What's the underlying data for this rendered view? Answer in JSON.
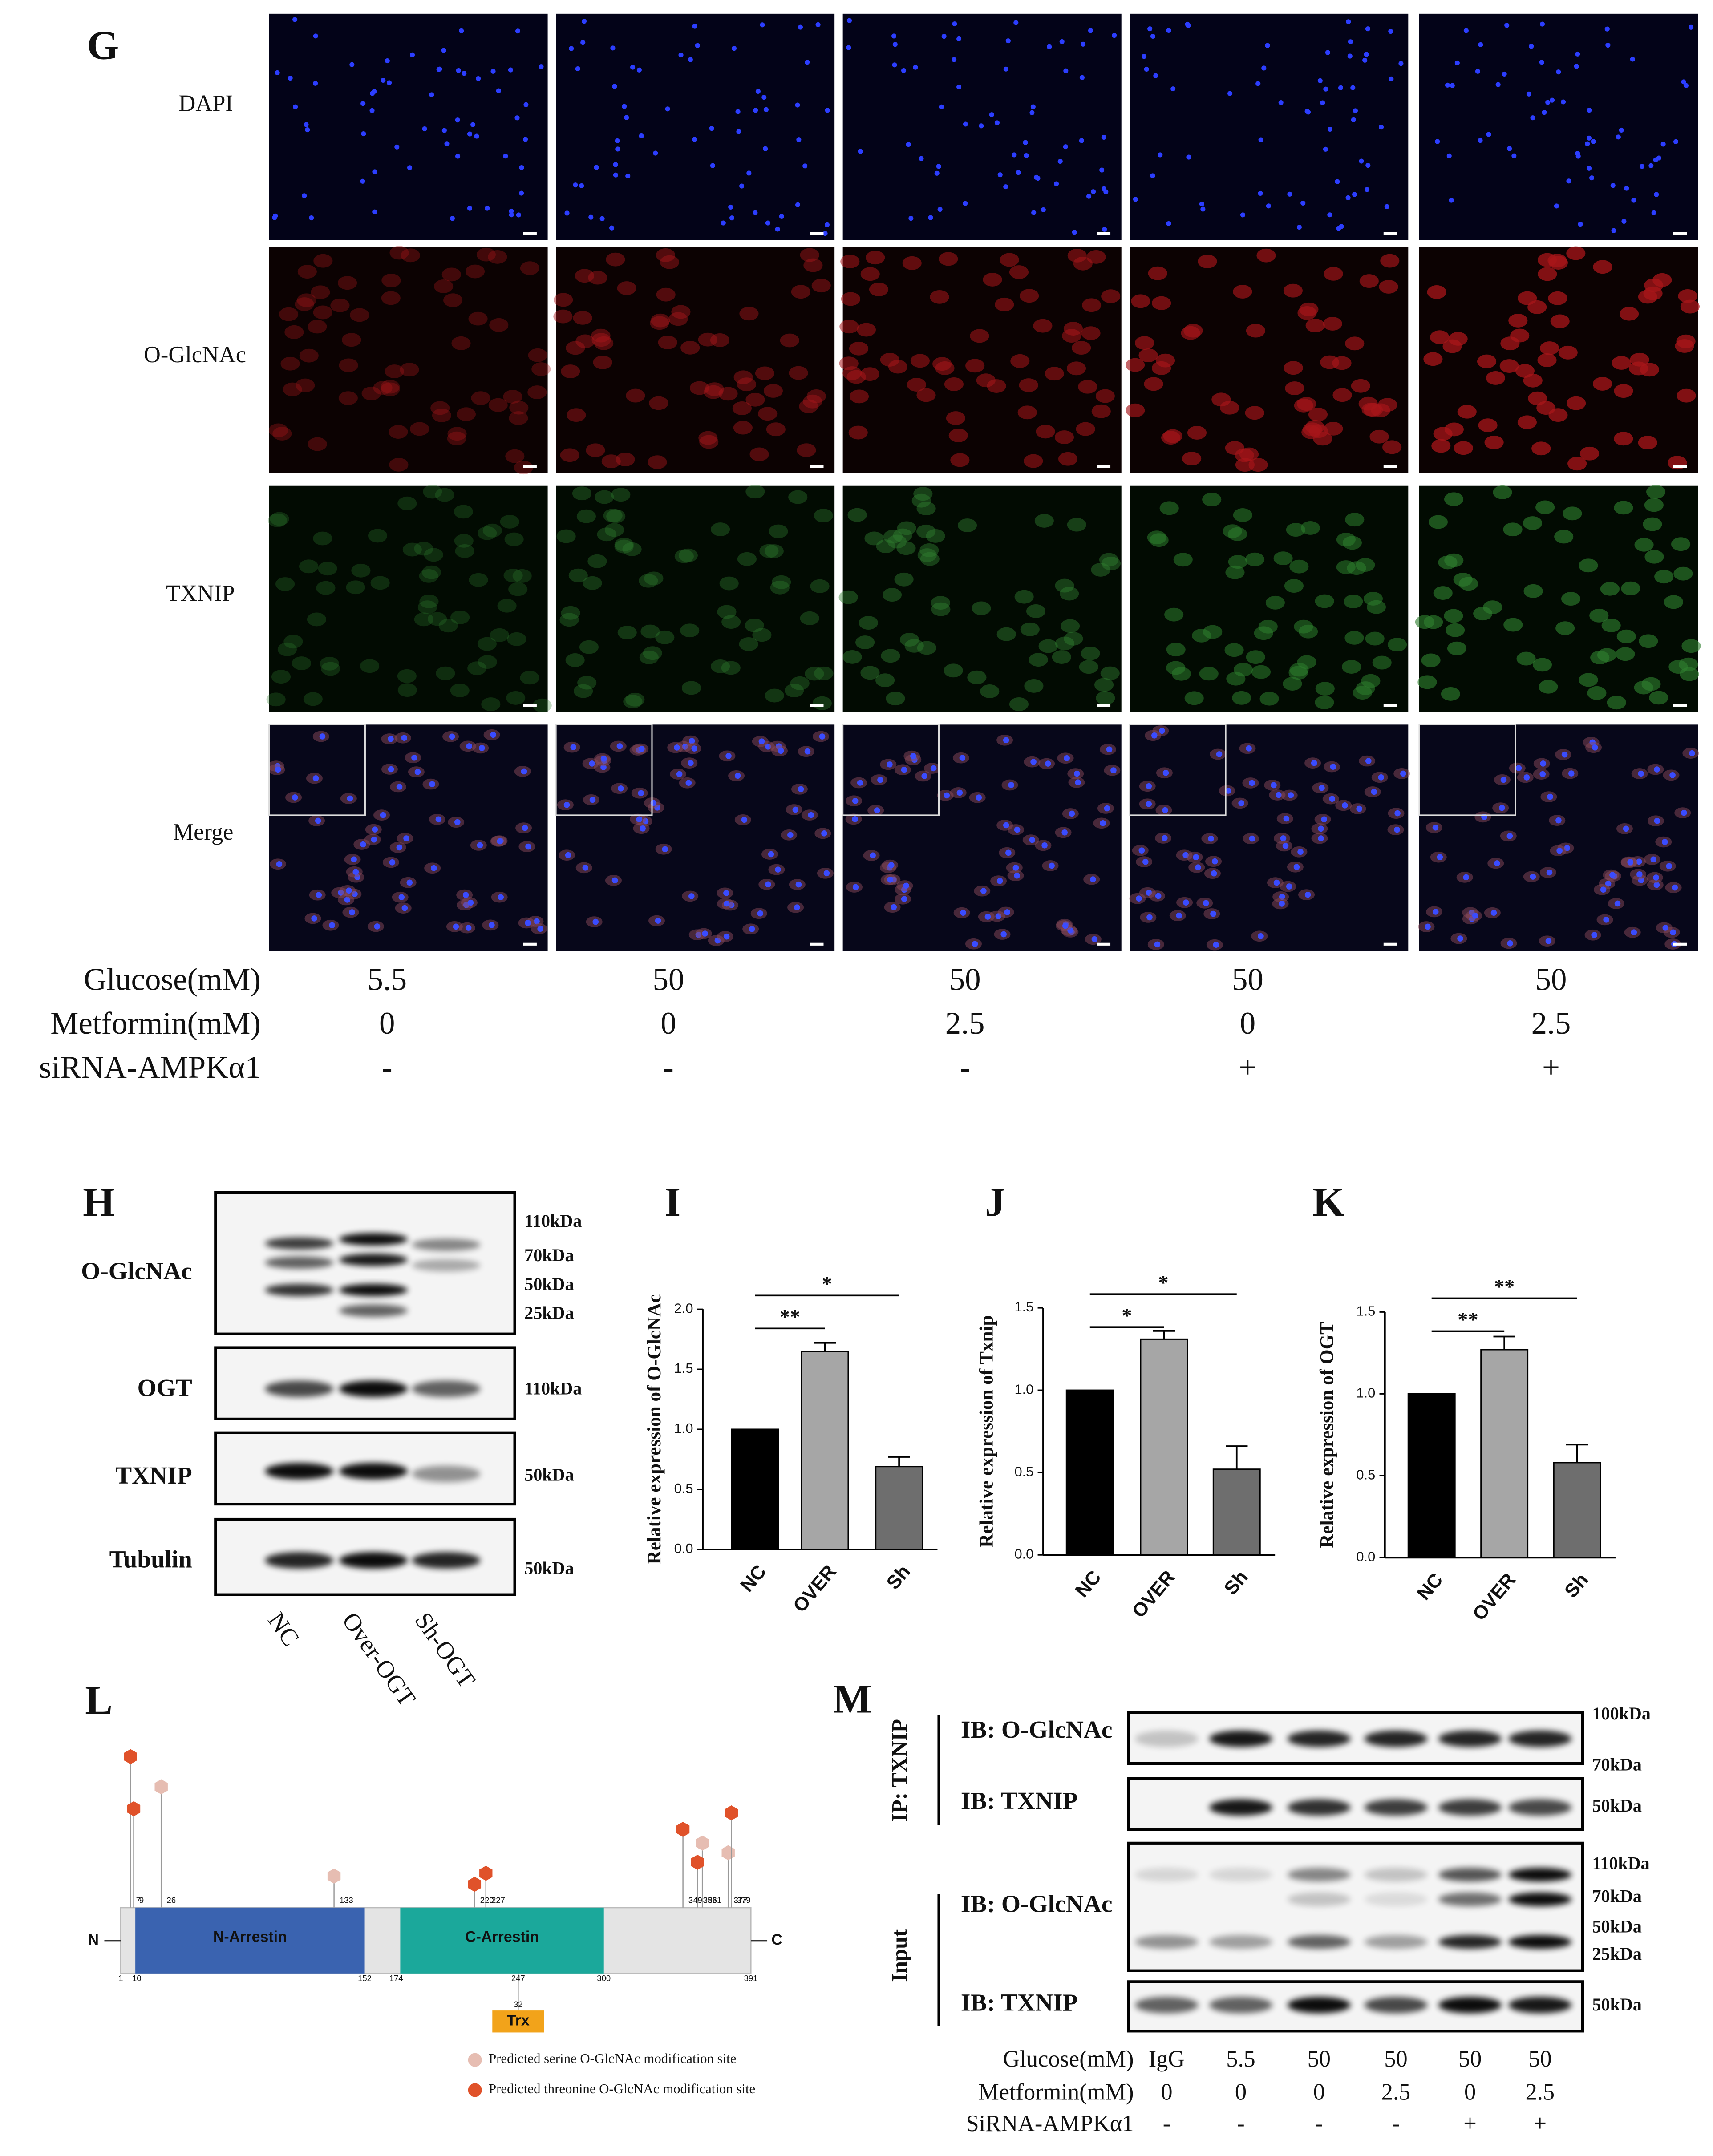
{
  "figure_g": {
    "label": "G",
    "channels": [
      "DAPI",
      "O-GlcNAc",
      "TXNIP",
      "Merge"
    ],
    "conditions": [
      {
        "name": "Glucose(mM)",
        "values": [
          "5.5",
          "50",
          "50",
          "50",
          "50"
        ]
      },
      {
        "name": "Metformin(mM)",
        "values": [
          "0",
          "0",
          "2.5",
          "0",
          "2.5"
        ]
      },
      {
        "name": "siRNA-AMPKα1",
        "values": [
          "-",
          "-",
          "-",
          "+",
          "+"
        ]
      }
    ]
  },
  "blot_h": {
    "label": "H",
    "rows": [
      {
        "name": "O-GlcNAc",
        "markers": [
          "110kDa",
          "70kDa",
          "50kDa",
          "25kDa"
        ]
      },
      {
        "name": "OGT",
        "markers": [
          "110kDa"
        ]
      },
      {
        "name": "TXNIP",
        "markers": [
          "50kDa"
        ]
      },
      {
        "name": "Tubulin",
        "markers": [
          "50kDa"
        ]
      }
    ],
    "lanes": [
      "NC",
      "Over-OGT",
      "Sh-OGT"
    ]
  },
  "chart_data": [
    {
      "type": "bar",
      "panel": "I",
      "ylabel": "Relative expression of O-GlcNAc",
      "categories": [
        "NC",
        "OVER",
        "Sh"
      ],
      "values": [
        1.0,
        1.65,
        0.69
      ],
      "errors": [
        0,
        0.07,
        0.08
      ],
      "colors": [
        "#000000",
        "#a6a6a6",
        "#6e6e6e"
      ],
      "ylim": [
        0,
        2.0
      ],
      "yticks": [
        {
          "value": 0,
          "label": "0.0"
        },
        0.5,
        {
          "value": 1,
          "label": "1.0"
        },
        1.5,
        {
          "value": 2,
          "label": "2.0"
        }
      ],
      "significance": [
        {
          "from": 0,
          "to": 1,
          "label": "**"
        },
        {
          "from": 0,
          "to": 2,
          "label": "*"
        }
      ]
    },
    {
      "type": "bar",
      "panel": "J",
      "ylabel": "Relative expression of Txnip",
      "categories": [
        "NC",
        "OVER",
        "Sh"
      ],
      "values": [
        1.0,
        1.31,
        0.52
      ],
      "errors": [
        0,
        0.05,
        0.14
      ],
      "colors": [
        "#000000",
        "#a6a6a6",
        "#6e6e6e"
      ],
      "ylim": [
        0,
        1.5
      ],
      "yticks": [
        {
          "value": 0,
          "label": "0.0"
        },
        0.5,
        {
          "value": 1,
          "label": "1.0"
        },
        1.5
      ],
      "significance": [
        {
          "from": 0,
          "to": 1,
          "label": "*"
        },
        {
          "from": 0,
          "to": 2,
          "label": "*"
        }
      ]
    },
    {
      "type": "bar",
      "panel": "K",
      "ylabel": "Relative expression of OGT",
      "categories": [
        "NC",
        "OVER",
        "Sh"
      ],
      "values": [
        1.0,
        1.27,
        0.58
      ],
      "errors": [
        0,
        0.08,
        0.11
      ],
      "colors": [
        "#000000",
        "#a6a6a6",
        "#6e6e6e"
      ],
      "ylim": [
        0,
        1.5
      ],
      "yticks": [
        {
          "value": 0,
          "label": "0.0"
        },
        0.5,
        {
          "value": 1,
          "label": "1.0"
        },
        1.5
      ],
      "significance": [
        {
          "from": 0,
          "to": 1,
          "label": "**"
        },
        {
          "from": 0,
          "to": 2,
          "label": "**"
        }
      ]
    }
  ],
  "protein_l": {
    "label": "L",
    "n_terminus": "N",
    "c_terminus": "C",
    "start": 1,
    "end": 391,
    "domains": [
      {
        "name": "N-Arrestin",
        "start": 10,
        "end": 152,
        "color": "#3a63b0"
      },
      {
        "name": "C-Arrestin",
        "start": 174,
        "end": 300,
        "color": "#1ba89b"
      }
    ],
    "trx": {
      "name": "Trx",
      "position": 247,
      "length": 32,
      "color": "#f2a31a"
    },
    "site_types": [
      {
        "label": "Predicted serine O-GlcNAc modification site",
        "color": "#e6bdb2",
        "positions": [
          26,
          133,
          361,
          377
        ]
      },
      {
        "label": "Predicted threonine O-GlcNAc modification site",
        "color": "#e0522a",
        "positions": [
          7,
          9,
          220,
          227,
          349,
          358,
          379
        ]
      }
    ]
  },
  "blot_m": {
    "label": "M",
    "groups": [
      "IP: TXNIP",
      "Input"
    ],
    "rows": [
      {
        "name": "IB: O-GlcNAc",
        "markers": [
          "100kDa",
          "70kDa"
        ]
      },
      {
        "name": "IB: TXNIP",
        "markers": [
          "50kDa"
        ]
      },
      {
        "name": "IB: O-GlcNAc",
        "markers": [
          "110kDa",
          "70kDa",
          "50kDa",
          "25kDa"
        ]
      },
      {
        "name": "IB: TXNIP",
        "markers": [
          "50kDa"
        ]
      }
    ],
    "conditions": [
      {
        "name": "Glucose(mM)",
        "values": [
          "IgG",
          "5.5",
          "50",
          "50",
          "50",
          "50"
        ]
      },
      {
        "name": "Metformin(mM)",
        "values": [
          "0",
          "0",
          "0",
          "2.5",
          "0",
          "2.5"
        ]
      },
      {
        "name": "SiRNA-AMPKα1",
        "values": [
          "-",
          "-",
          "-",
          "-",
          "+",
          "+"
        ]
      }
    ]
  }
}
